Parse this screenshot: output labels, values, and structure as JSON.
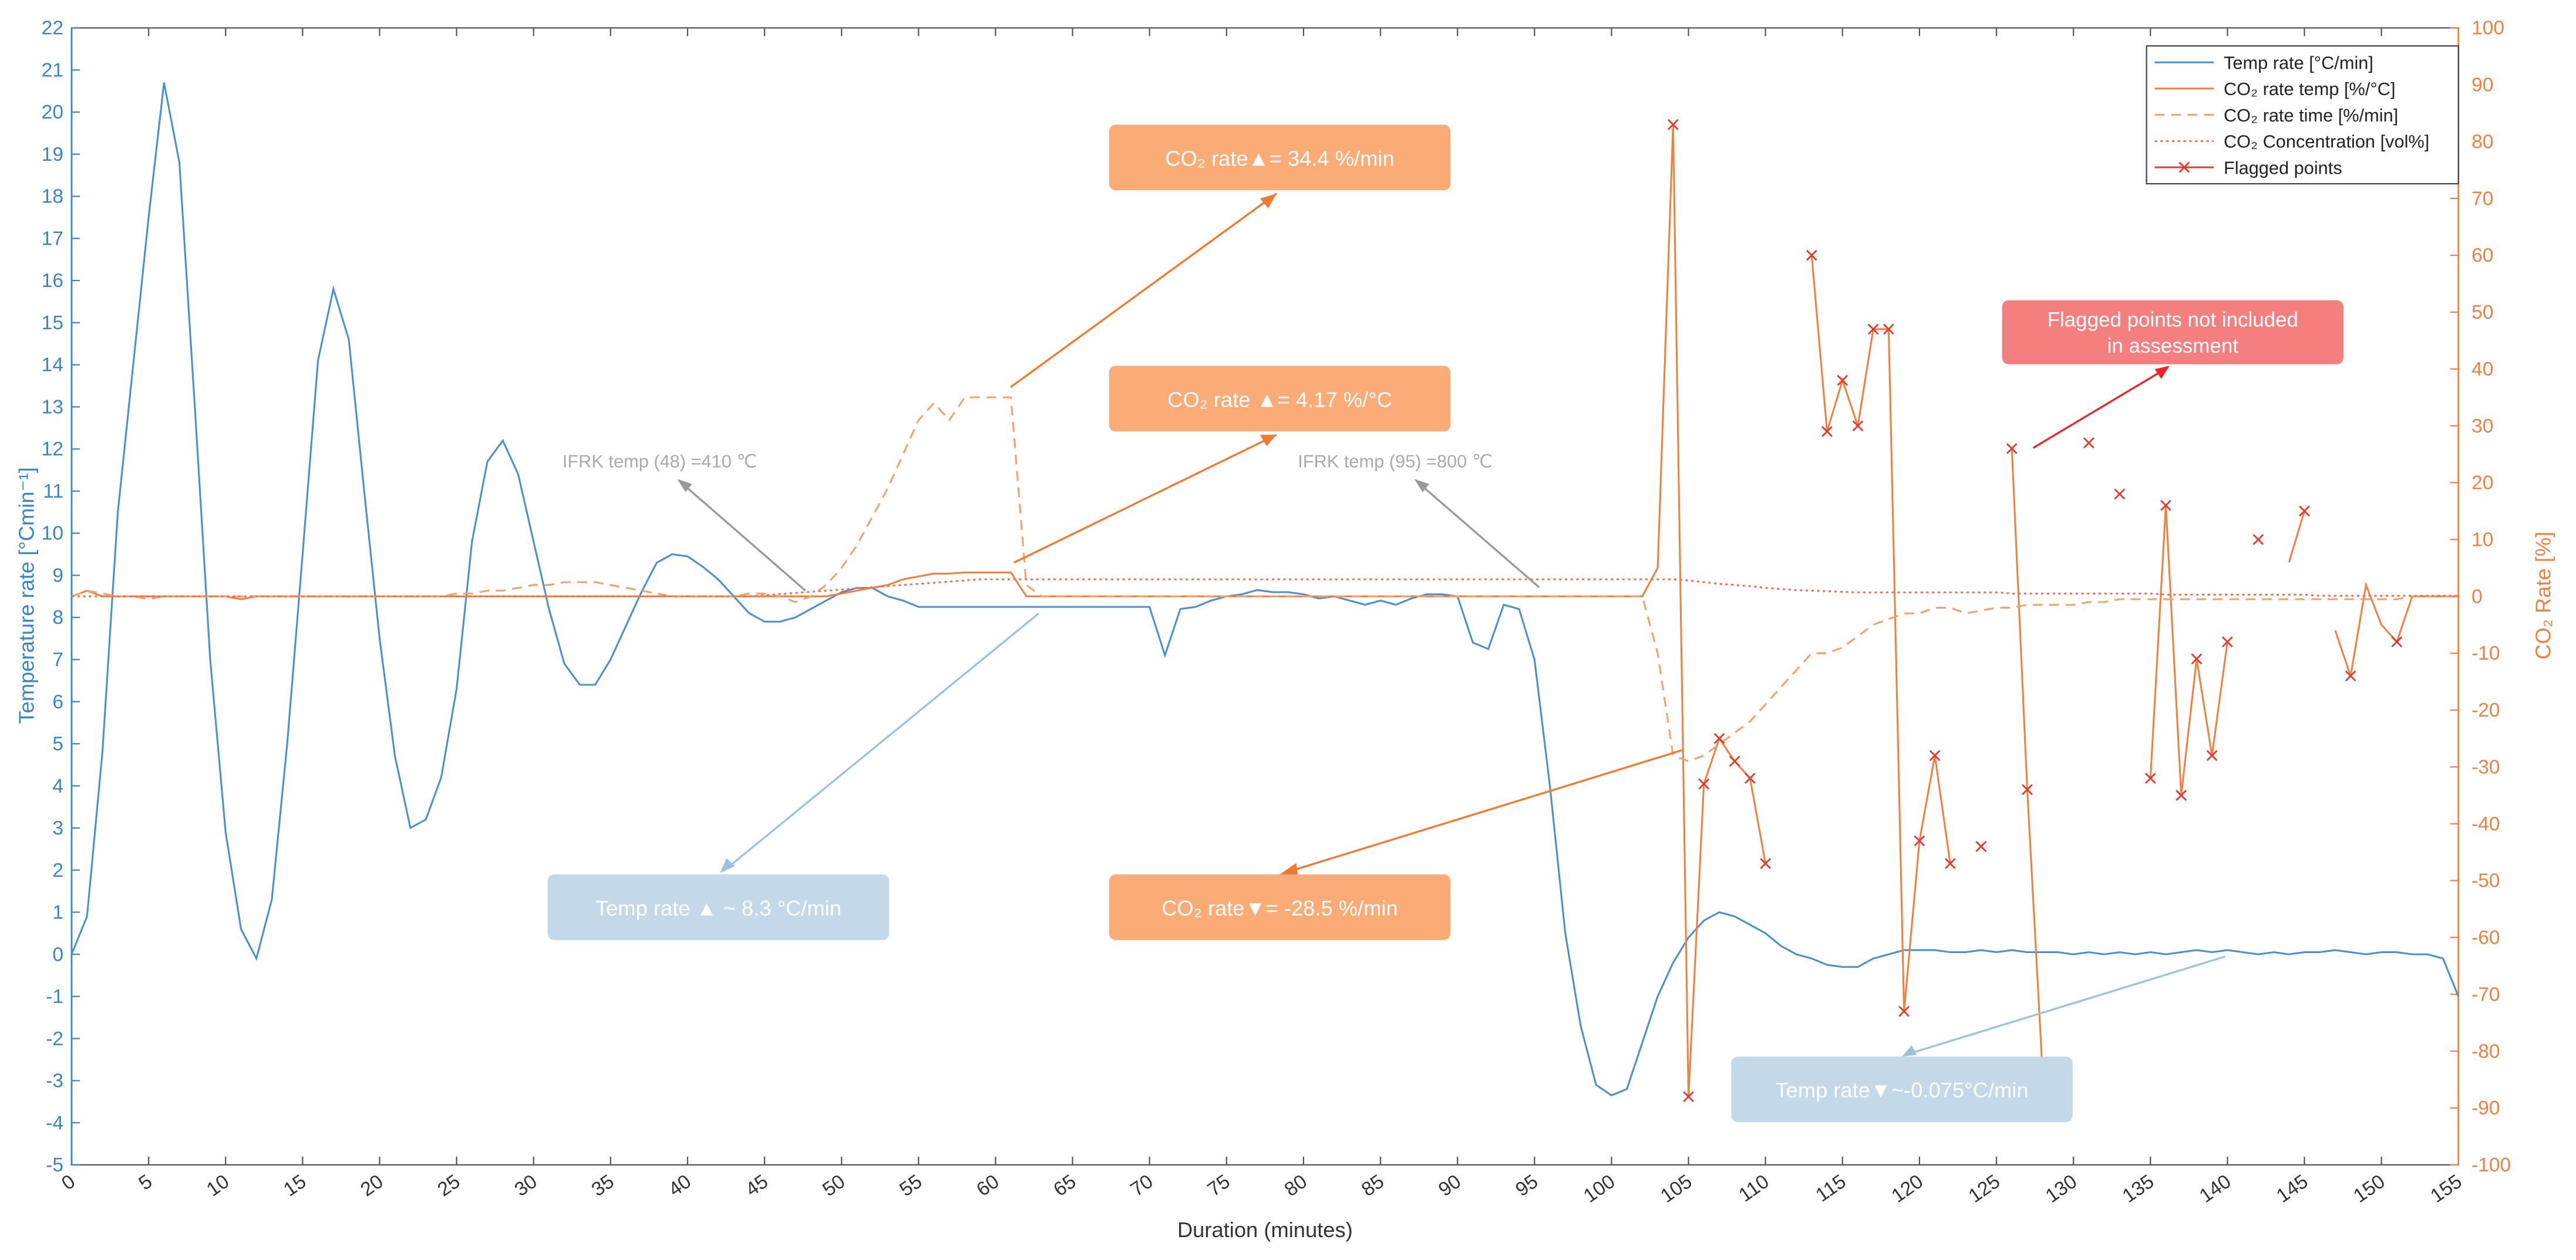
{
  "chart_data": {
    "type": "line",
    "xlabel": "Duration (minutes)",
    "ylabel": "Temperature rate [°Cmin⁻¹]",
    "y2label": "CO₂ Rate [%]",
    "xlim": [
      0,
      155
    ],
    "ylim": [
      -5,
      22
    ],
    "y2lim": [
      -100,
      100
    ],
    "xticks": [
      0,
      5,
      10,
      15,
      20,
      25,
      30,
      35,
      40,
      45,
      50,
      55,
      60,
      65,
      70,
      75,
      80,
      85,
      90,
      95,
      100,
      105,
      110,
      115,
      120,
      125,
      130,
      135,
      140,
      145,
      150,
      155
    ],
    "yticks": [
      -5,
      -4,
      -3,
      -2,
      -1,
      0,
      1,
      2,
      3,
      4,
      5,
      6,
      7,
      8,
      9,
      10,
      11,
      12,
      13,
      14,
      15,
      16,
      17,
      18,
      19,
      20,
      21,
      22
    ],
    "y2ticks": [
      -100,
      -90,
      -80,
      -70,
      -60,
      -50,
      -40,
      -30,
      -20,
      -10,
      0,
      10,
      20,
      30,
      40,
      50,
      60,
      70,
      80,
      90,
      100
    ],
    "legend": "upper right",
    "x": [
      0,
      1,
      2,
      3,
      4,
      5,
      6,
      7,
      8,
      9,
      10,
      11,
      12,
      13,
      14,
      15,
      16,
      17,
      18,
      19,
      20,
      21,
      22,
      23,
      24,
      25,
      26,
      27,
      28,
      29,
      30,
      31,
      32,
      33,
      34,
      35,
      36,
      37,
      38,
      39,
      40,
      41,
      42,
      43,
      44,
      45,
      46,
      47,
      48,
      49,
      50,
      51,
      52,
      53,
      54,
      55,
      56,
      57,
      58,
      59,
      60,
      61,
      62,
      63,
      64,
      65,
      66,
      67,
      68,
      69,
      70,
      71,
      72,
      73,
      74,
      75,
      76,
      77,
      78,
      79,
      80,
      81,
      82,
      83,
      84,
      85,
      86,
      87,
      88,
      89,
      90,
      91,
      92,
      93,
      94,
      95,
      96,
      97,
      98,
      99,
      100,
      101,
      102,
      103,
      104,
      105,
      106,
      107,
      108,
      109,
      110,
      111,
      112,
      113,
      114,
      115,
      116,
      117,
      118,
      119,
      120,
      121,
      122,
      123,
      124,
      125,
      126,
      127,
      128,
      129,
      130,
      131,
      132,
      133,
      134,
      135,
      136,
      137,
      138,
      139,
      140,
      141,
      142,
      143,
      144,
      145,
      146,
      147,
      148,
      149,
      150,
      151,
      152,
      153,
      154,
      155
    ],
    "series": [
      {
        "name": "Temp rate [°C/min]",
        "color": "#4a8fcf",
        "axis": "y",
        "linestyle": "solid",
        "values": [
          0,
          0.9,
          4.8,
          10.5,
          14,
          17.5,
          20.7,
          18.8,
          13,
          7,
          2.9,
          0.6,
          -0.1,
          1.3,
          5,
          9.5,
          14.1,
          15.8,
          14.6,
          11,
          7.5,
          4.7,
          3,
          3.2,
          4.2,
          6.3,
          9.8,
          11.7,
          12.2,
          11.4,
          9.8,
          8.2,
          6.9,
          6.4,
          6.4,
          7,
          7.8,
          8.6,
          9.3,
          9.5,
          9.45,
          9.2,
          8.9,
          8.5,
          8.1,
          7.9,
          7.9,
          8,
          8.2,
          8.4,
          8.6,
          8.7,
          8.7,
          8.5,
          8.4,
          8.25,
          8.25,
          8.25,
          8.25,
          8.25,
          8.25,
          8.25,
          8.25,
          8.25,
          8.25,
          8.25,
          8.25,
          8.25,
          8.25,
          8.25,
          8.25,
          7.1,
          8.2,
          8.25,
          8.4,
          8.5,
          8.55,
          8.65,
          8.6,
          8.6,
          8.55,
          8.45,
          8.5,
          8.4,
          8.3,
          8.4,
          8.3,
          8.45,
          8.55,
          8.55,
          8.5,
          7.4,
          7.25,
          8.3,
          8.2,
          7,
          4,
          0.5,
          -1.7,
          -3.1,
          -3.35,
          -3.2,
          -2.1,
          -1,
          -0.2,
          0.4,
          0.8,
          1,
          0.9,
          0.7,
          0.5,
          0.2,
          0,
          -0.1,
          -0.25,
          -0.3,
          -0.3,
          -0.1,
          0,
          0.1,
          0.1,
          0.1,
          0.05,
          0.05,
          0.1,
          0.05,
          0.1,
          0.05,
          0.05,
          0.05,
          0,
          0.05,
          0,
          0.05,
          0,
          0.05,
          0,
          0.05,
          0.1,
          0.05,
          0.1,
          0.05,
          0,
          0.05,
          0,
          0.05,
          0.05,
          0.1,
          0.05,
          0,
          0.05,
          0.05,
          0,
          0,
          -0.1,
          -1
        ]
      },
      {
        "name": "CO₂ rate temp [%/°C]",
        "color": "#f08040",
        "axis": "y2",
        "linestyle": "solid",
        "values": [
          0,
          1,
          0,
          0,
          0,
          0,
          0,
          0,
          0,
          0,
          0,
          -0.5,
          0,
          0,
          0,
          0,
          0,
          0,
          0,
          0,
          0,
          0,
          0,
          0,
          0,
          0,
          0,
          0,
          0,
          0,
          0,
          0,
          0,
          0,
          0,
          0,
          0,
          0,
          0,
          0,
          0,
          0,
          0,
          0,
          0,
          0,
          0,
          0,
          0,
          0,
          0.5,
          1,
          1.5,
          2,
          3,
          3.5,
          4,
          4,
          4.2,
          4.2,
          4.2,
          4.2,
          0,
          0,
          0,
          0,
          0,
          0,
          0,
          0,
          0,
          0,
          0,
          0,
          0,
          0,
          0,
          0,
          0,
          0,
          0,
          0,
          0,
          0,
          0,
          0,
          0,
          0,
          0,
          0,
          0,
          0,
          0,
          0,
          0,
          0,
          0,
          0,
          0,
          0,
          0,
          0,
          0,
          5,
          83,
          -88,
          -33,
          -25,
          -29,
          -32,
          -47,
          null,
          null,
          60,
          29,
          38,
          30,
          47,
          47,
          -73,
          -43,
          -28,
          -47,
          null,
          null,
          null,
          26,
          -34,
          -84,
          null,
          null,
          null,
          null,
          null,
          null,
          -32,
          16,
          -35,
          -11,
          -28,
          -8,
          null,
          null,
          null,
          6,
          15,
          null,
          -6,
          -14,
          2,
          -5,
          -8,
          0,
          0,
          0,
          0
        ]
      },
      {
        "name": "CO₂ rate time [%/min]",
        "color": "#f4a06c",
        "axis": "y2",
        "linestyle": "dashed",
        "values": [
          0,
          1,
          0.5,
          0,
          0,
          -0.5,
          0,
          0,
          0,
          0,
          0,
          0,
          0,
          0,
          0,
          0,
          0,
          0,
          0,
          0,
          0,
          0,
          0,
          0,
          0,
          0.5,
          0.5,
          1,
          1,
          1.5,
          2,
          2,
          2.5,
          2.5,
          2.5,
          2,
          1.5,
          1,
          0.5,
          0,
          0,
          0,
          0,
          0,
          0.5,
          0.5,
          0,
          -1,
          0,
          2,
          5,
          9,
          14,
          19,
          25,
          31,
          34,
          31,
          35,
          35,
          35,
          35,
          2,
          0,
          0,
          0,
          0,
          0,
          0,
          0,
          0,
          0,
          0,
          0,
          0,
          0,
          0,
          0,
          0,
          0,
          0,
          0,
          0,
          0,
          0,
          0,
          0,
          0,
          0,
          0,
          0,
          0,
          0,
          0,
          0,
          0,
          0,
          0,
          0,
          0,
          0,
          0,
          0,
          -10,
          -28,
          -29,
          -28,
          -26,
          -24,
          -22,
          -19,
          -16,
          -13,
          -10,
          -10,
          -9,
          -7,
          -5,
          -4,
          -3,
          -3,
          -2,
          -2,
          -3,
          -2.5,
          -2,
          -2,
          -1.5,
          -1.5,
          -1.5,
          -1.5,
          -1,
          -1,
          -0.5,
          -0.5,
          -0.5,
          -0.5,
          -0.5,
          -0.5,
          -0.5,
          -0.5,
          -0.5,
          -0.5,
          -0.5,
          -0.5,
          -0.5,
          -0.5,
          -0.5,
          -0.5,
          -0.5,
          -0.5,
          -0.5,
          0,
          0,
          0,
          0
        ]
      },
      {
        "name": "CO₂ Concentration [vol%]",
        "color": "#f07050",
        "axis": "y2",
        "linestyle": "dotted",
        "values": [
          0,
          0,
          0,
          0,
          0,
          0,
          0,
          0,
          0,
          0,
          0,
          0,
          0,
          0,
          0,
          0,
          0,
          0,
          0,
          0,
          0,
          0,
          0,
          0,
          0,
          0,
          0,
          0,
          0,
          0,
          0,
          0,
          0,
          0,
          0,
          0,
          0,
          0,
          0,
          0,
          0,
          0,
          0,
          0,
          0,
          0.2,
          0.4,
          0.6,
          0.8,
          1,
          1.2,
          1.4,
          1.6,
          1.8,
          2,
          2.2,
          2.4,
          2.6,
          2.8,
          3,
          3,
          3,
          3,
          3,
          3,
          3,
          3,
          3,
          3,
          3,
          3,
          3,
          3,
          3,
          3,
          3,
          3,
          3,
          3,
          3,
          3,
          3,
          3,
          3,
          3,
          3,
          3,
          3,
          3,
          3,
          3,
          3,
          3,
          3,
          3,
          3,
          3,
          3,
          3,
          3,
          3,
          3,
          3,
          3,
          3,
          2.8,
          2.5,
          2.2,
          2,
          1.8,
          1.5,
          1.3,
          1.1,
          1,
          0.9,
          0.8,
          0.7,
          0.7,
          0.7,
          0.7,
          0.7,
          0.7,
          0.7,
          0.7,
          0.7,
          0.7,
          0.5,
          0.5,
          0.5,
          0.5,
          0.5,
          0.5,
          0.5,
          0.5,
          0.5,
          0.5,
          0.3,
          0.3,
          0.3,
          0.3,
          0.3,
          0.3,
          0.3,
          0.3,
          0.3,
          0.3,
          0.1,
          0.1,
          0.1,
          0.1,
          0.1,
          0.1,
          0.1,
          0.1,
          0.1,
          0.1
        ]
      },
      {
        "name": "Flagged points",
        "color": "#e8362a",
        "axis": "y2",
        "marker": "x",
        "x": [
          104,
          105,
          106,
          107,
          108,
          109,
          110,
          113,
          114,
          115,
          116,
          117,
          118,
          119,
          120,
          121,
          122,
          124,
          126,
          127,
          128,
          131,
          133,
          135,
          136,
          137,
          138,
          139,
          140,
          142,
          145,
          148,
          151
        ],
        "values": [
          83,
          -88,
          -33,
          -25,
          -29,
          -32,
          -47,
          60,
          29,
          38,
          30,
          47,
          47,
          -73,
          -43,
          -28,
          -47,
          -44,
          26,
          -34,
          -84,
          27,
          18,
          -32,
          16,
          -35,
          -11,
          -28,
          -8,
          10,
          15,
          -14,
          -8
        ]
      }
    ],
    "annotations": [
      {
        "text": "CO₂ rate▲= 34.4 %/min"
      },
      {
        "text": "CO₂ rate ▲= 4.17 %/°C"
      },
      {
        "text": "CO₂ rate▼= -28.5 %/min"
      },
      {
        "text": "Temp rate ▲ ~ 8.3 °C/min"
      },
      {
        "text": "Temp rate▼~-0.075°C/min"
      },
      {
        "lines": [
          "Flagged points not included",
          "in assessment"
        ]
      },
      {
        "text": "IFRK temp (48) =410 ℃"
      },
      {
        "text": "IFRK temp (95) =800 ℃"
      }
    ]
  }
}
